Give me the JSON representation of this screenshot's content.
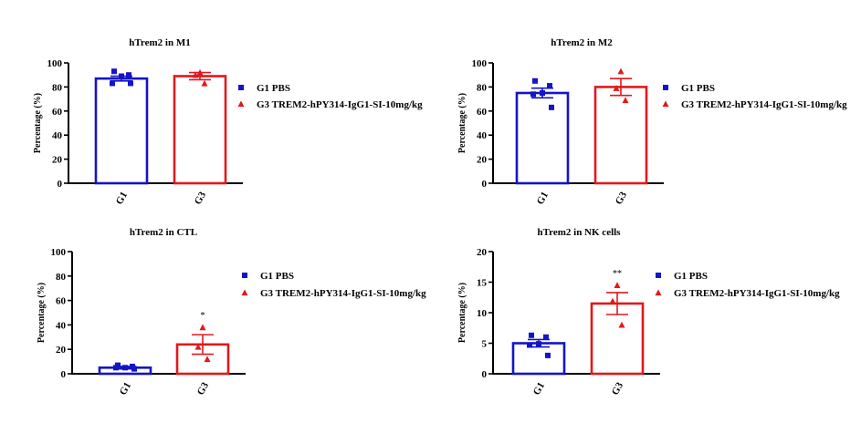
{
  "colors": {
    "g1": "#1414c8",
    "g3": "#e0191e",
    "axis": "#000000"
  },
  "chart_data": [
    {
      "type": "bar",
      "title": "hTrem2 in M1",
      "ylabel": "Percentage (%)",
      "xlabel": "",
      "categories": [
        "G1",
        "G3"
      ],
      "ylim": [
        0,
        100
      ],
      "yticks": [
        "0",
        "20",
        "40",
        "60",
        "80",
        "100"
      ],
      "bars": [
        {
          "group": "G1",
          "mean": 87,
          "sem": 2,
          "points": [
            93,
            90,
            89,
            83,
            83
          ],
          "sig": ""
        },
        {
          "group": "G3",
          "mean": 89,
          "sem": 3,
          "points": [
            92,
            90,
            83
          ],
          "sig": ""
        }
      ],
      "legend": [
        "G1 PBS",
        "G3 TREM2-hPY314-IgG1-SI-10mg/kg"
      ]
    },
    {
      "type": "bar",
      "title": "hTrem2 in M2",
      "ylabel": "Percentage (%)",
      "xlabel": "",
      "categories": [
        "G1",
        "G3"
      ],
      "ylim": [
        0,
        100
      ],
      "yticks": [
        "0",
        "20",
        "40",
        "60",
        "80",
        "100"
      ],
      "bars": [
        {
          "group": "G1",
          "mean": 75,
          "sem": 4,
          "points": [
            85,
            81,
            75,
            74,
            63
          ],
          "sig": ""
        },
        {
          "group": "G3",
          "mean": 80,
          "sem": 7,
          "points": [
            93,
            79,
            69
          ],
          "sig": ""
        }
      ],
      "legend": [
        "G1 PBS",
        "G3 TREM2-hPY314-IgG1-SI-10mg/kg"
      ]
    },
    {
      "type": "bar",
      "title": "hTrem2 in CTL",
      "ylabel": "Percentage (%)",
      "xlabel": "",
      "categories": [
        "G1",
        "G3"
      ],
      "ylim": [
        0,
        100
      ],
      "yticks": [
        "0",
        "20",
        "40",
        "60",
        "80",
        "100"
      ],
      "bars": [
        {
          "group": "G1",
          "mean": 5,
          "sem": 1,
          "points": [
            7,
            6,
            5,
            5,
            4
          ],
          "sig": ""
        },
        {
          "group": "G3",
          "mean": 24,
          "sem": 8,
          "points": [
            38,
            22,
            12
          ],
          "sig": "*"
        }
      ],
      "legend": [
        "G1 PBS",
        "G3 TREM2-hPY314-IgG1-SI-10mg/kg"
      ]
    },
    {
      "type": "bar",
      "title": "hTrem2 in NK cells",
      "ylabel": "Percentage (%)",
      "xlabel": "",
      "categories": [
        "G1",
        "G3"
      ],
      "ylim": [
        0,
        20
      ],
      "yticks": [
        "0",
        "5",
        "10",
        "15",
        "20"
      ],
      "bars": [
        {
          "group": "G1",
          "mean": 5,
          "sem": 0.6,
          "points": [
            6.3,
            6.0,
            4.9,
            4.7,
            3.0
          ],
          "sig": ""
        },
        {
          "group": "G3",
          "mean": 11.5,
          "sem": 1.8,
          "points": [
            14.5,
            11.9,
            8.0
          ],
          "sig": "**"
        }
      ],
      "legend": [
        "G1 PBS",
        "G3  TREM2-hPY314-IgG1-SI-10mg/kg"
      ]
    }
  ]
}
